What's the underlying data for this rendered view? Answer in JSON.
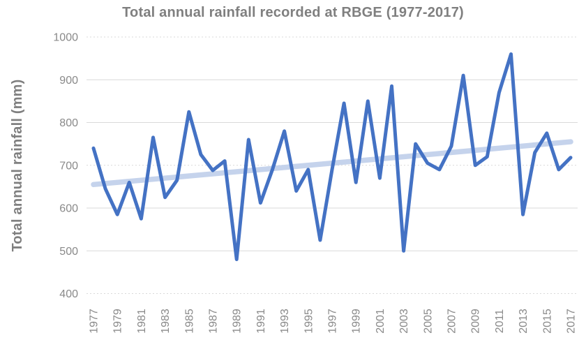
{
  "title": "Total annual rainfall recorded at RBGE (1977-2017)",
  "y_axis": {
    "title": "Total annual rainfall (mm)"
  },
  "colors": {
    "series_line": "#4472C4",
    "trend_line": "#C5D3EC",
    "gridline": "#D9D9D9",
    "title_text": "#7f7f7f",
    "tick_text": "#898989"
  },
  "chart_data": {
    "type": "line",
    "title": "Total annual rainfall recorded at RBGE (1977-2017)",
    "xlabel": "",
    "ylabel": "Total annual rainfall (mm)",
    "ylim": [
      400,
      1000
    ],
    "yticks": [
      400,
      500,
      600,
      700,
      800,
      900,
      1000
    ],
    "dotted_gridlines": [
      400,
      700,
      1000
    ],
    "xtick_interval": 2,
    "grid": "horizontal",
    "legend": "none",
    "x": [
      1977,
      1978,
      1979,
      1980,
      1981,
      1982,
      1983,
      1984,
      1985,
      1986,
      1987,
      1988,
      1989,
      1990,
      1991,
      1992,
      1993,
      1994,
      1995,
      1996,
      1997,
      1998,
      1999,
      2000,
      2001,
      2002,
      2003,
      2004,
      2005,
      2006,
      2007,
      2008,
      2009,
      2010,
      2011,
      2012,
      2013,
      2014,
      2015,
      2016,
      2017
    ],
    "series": [
      {
        "name": "Total annual rainfall (mm)",
        "values": [
          740,
          645,
          585,
          660,
          575,
          765,
          625,
          665,
          825,
          725,
          688,
          710,
          480,
          760,
          612,
          690,
          780,
          640,
          690,
          525,
          690,
          845,
          660,
          850,
          670,
          885,
          500,
          750,
          705,
          690,
          745,
          910,
          700,
          720,
          870,
          960,
          585,
          730,
          775,
          690,
          718
        ]
      }
    ],
    "trendline": {
      "name": "Linear trend",
      "start_value": 655,
      "end_value": 755
    }
  }
}
